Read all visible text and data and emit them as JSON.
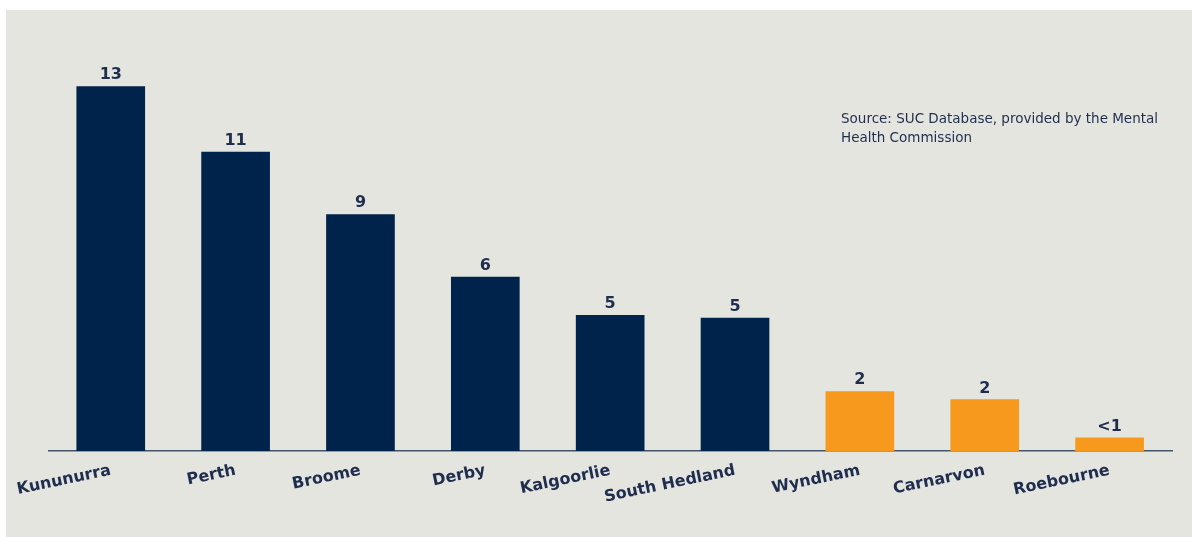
{
  "chart_data": {
    "type": "bar",
    "categories": [
      "Kununurra",
      "Perth",
      "Broome",
      "Derby",
      "Kalgoorlie",
      "South Hedland",
      "Wyndham",
      "Carnarvon",
      "Roebourne"
    ],
    "values": [
      13.4,
      11,
      8.7,
      6.4,
      5.0,
      4.9,
      2.2,
      1.9,
      0.5
    ],
    "colors": [
      "#00234b",
      "#00234b",
      "#00234b",
      "#00234b",
      "#00234b",
      "#00234b",
      "#f7991c",
      "#f7991c",
      "#f7991c"
    ],
    "value_labels": [
      "13",
      "11",
      "9",
      "6",
      "5",
      "5",
      "2",
      "2",
      "<1"
    ],
    "tick_labels": "x",
    "grid": false,
    "legend": false,
    "annotations": [
      "Source: SUC Database, provided by the Mental Health Commission"
    ]
  }
}
